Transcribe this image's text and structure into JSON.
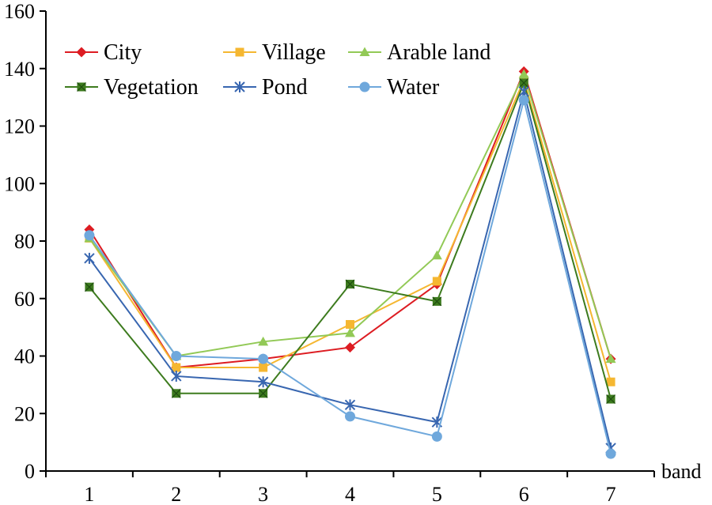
{
  "chart_data": {
    "type": "line",
    "xlabel": "band",
    "ylabel": "",
    "categories": [
      "1",
      "2",
      "3",
      "4",
      "5",
      "6",
      "7"
    ],
    "ylim": [
      0,
      160
    ],
    "yticks": [
      0,
      20,
      40,
      60,
      80,
      100,
      120,
      140,
      160
    ],
    "grid": false,
    "legend_position": "top-left",
    "series": [
      {
        "name": "City",
        "color": "#dd1c22",
        "marker": "diamond",
        "values": [
          84,
          36,
          39,
          43,
          65,
          139,
          39
        ]
      },
      {
        "name": "Village",
        "color": "#f5b731",
        "marker": "square",
        "values": [
          81,
          36,
          36,
          51,
          66,
          136,
          31
        ]
      },
      {
        "name": "Arable land",
        "color": "#92c956",
        "marker": "triangle",
        "values": [
          81,
          40,
          45,
          48,
          75,
          138,
          39
        ]
      },
      {
        "name": "Vegetation",
        "color": "#3d7b1e",
        "marker": "square-x",
        "values": [
          64,
          27,
          27,
          65,
          59,
          135,
          25
        ]
      },
      {
        "name": "Pond",
        "color": "#3866b0",
        "marker": "star",
        "values": [
          74,
          33,
          31,
          23,
          17,
          132,
          8
        ]
      },
      {
        "name": "Water",
        "color": "#6fa8dc",
        "marker": "circle",
        "values": [
          82,
          40,
          39,
          19,
          12,
          129,
          6
        ]
      }
    ]
  }
}
